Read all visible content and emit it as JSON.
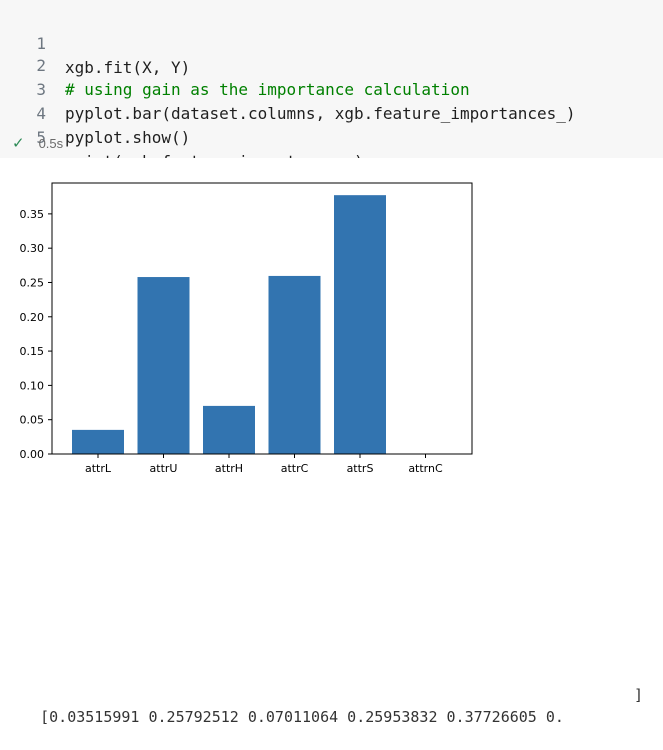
{
  "cell": {
    "lines": [
      {
        "no": "1",
        "code": "xgb.fit(X, Y)",
        "kind": "code"
      },
      {
        "no": "2",
        "code": "# using gain as the importance calculation",
        "kind": "comment"
      },
      {
        "no": "3",
        "code": "pyplot.bar(dataset.columns, xgb.feature_importances_)",
        "kind": "code"
      },
      {
        "no": "4",
        "code": "pyplot.show()",
        "kind": "code"
      },
      {
        "no": "5",
        "code": "print(xgb.feature_importances_)",
        "kind": "code"
      }
    ],
    "status_icon": "check-icon",
    "exec_time": "0.5s"
  },
  "chart_data": {
    "type": "bar",
    "categories": [
      "attrL",
      "attrU",
      "attrH",
      "attrC",
      "attrS",
      "attrnC"
    ],
    "values": [
      0.03515991,
      0.25792512,
      0.07011064,
      0.25953832,
      0.37726605,
      0.0
    ],
    "yticks": [
      "0.00",
      "0.05",
      "0.10",
      "0.15",
      "0.20",
      "0.25",
      "0.30",
      "0.35"
    ],
    "ylim": [
      0,
      0.395
    ],
    "bar_color": "#3274b0",
    "grid": false
  },
  "output": {
    "printed": "[0.03515991 0.25792512 0.07011064 0.25953832 0.37726605 0.        ",
    "closing": "]"
  }
}
